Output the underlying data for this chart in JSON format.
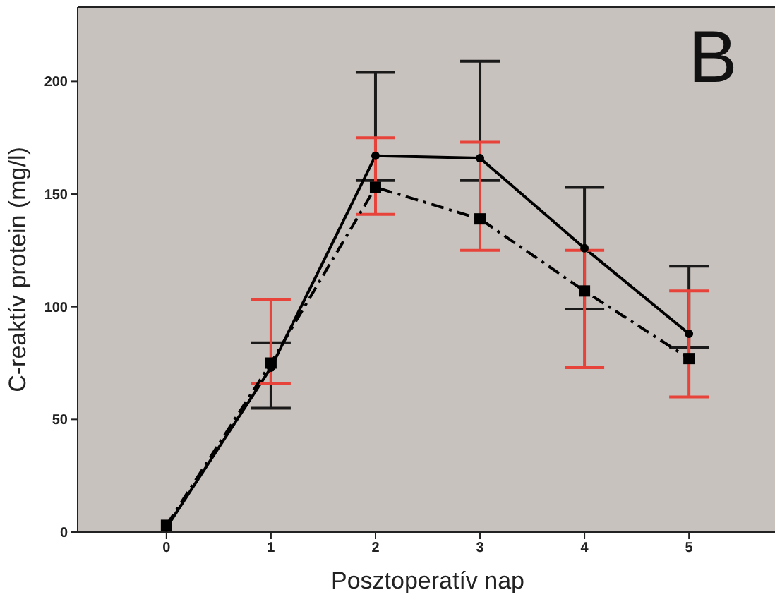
{
  "chart_data": {
    "type": "line",
    "xlabel": "Posztoperatív nap",
    "ylabel": "C-reaktív protein (mg/l)",
    "annotations": [
      "B"
    ],
    "x": [
      0,
      1,
      2,
      3,
      4,
      5
    ],
    "xlim": [
      -0.85,
      5.85
    ],
    "xticks": [
      0,
      1,
      2,
      3,
      4,
      5
    ],
    "ylim": [
      0,
      233
    ],
    "yticks": [
      0,
      50,
      100,
      150,
      200
    ],
    "series": [
      {
        "color": "#000000",
        "marker": "circle",
        "line_style": "solid",
        "values": [
          2,
          73,
          167,
          166,
          126,
          88
        ],
        "errors": [
          null,
          [
            55,
            84
          ],
          [
            156,
            204
          ],
          [
            156,
            209
          ],
          [
            99,
            153
          ],
          [
            82,
            118
          ]
        ]
      },
      {
        "color": "#000000",
        "marker": "square",
        "line_style": "dashdot",
        "values": [
          3,
          75,
          153,
          139,
          107,
          77
        ],
        "errors": [
          null,
          [
            66,
            103
          ],
          [
            141,
            175
          ],
          [
            125,
            173
          ],
          [
            73,
            125
          ],
          [
            60,
            107
          ]
        ]
      }
    ]
  }
}
